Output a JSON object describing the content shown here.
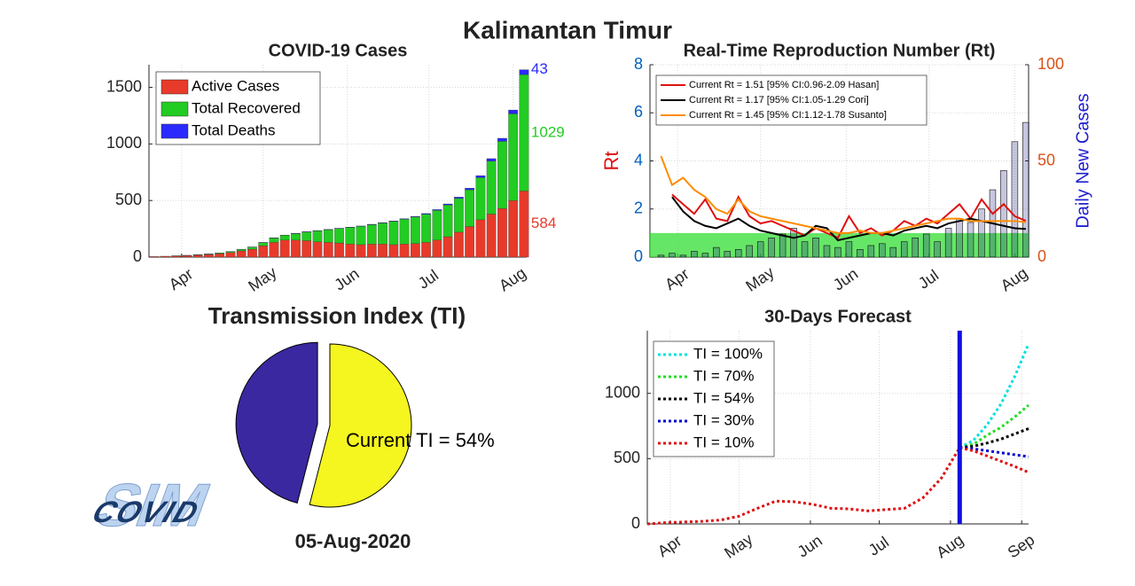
{
  "title": "Kalimantan Timur",
  "date": "05-Aug-2020",
  "logo": {
    "back": "SIM",
    "front": "COVID"
  },
  "chart_data": [
    {
      "type": "bar",
      "stacked": true,
      "title": "COVID-19 Cases",
      "grid": true,
      "legend": "upper left",
      "x": [
        82,
        86,
        90,
        94,
        98,
        102,
        106,
        110,
        114,
        118,
        122,
        126,
        130,
        134,
        138,
        142,
        146,
        150,
        154,
        158,
        162,
        166,
        170,
        174,
        178,
        182,
        186,
        190,
        194,
        198,
        202,
        206,
        210,
        214,
        218
      ],
      "xlim": [
        80,
        219
      ],
      "xticks": [
        {
          "value": 92,
          "label": "Apr"
        },
        {
          "value": 122,
          "label": "May"
        },
        {
          "value": 153,
          "label": "Jun"
        },
        {
          "value": 183,
          "label": "Jul"
        },
        {
          "value": 214,
          "label": "Aug"
        }
      ],
      "ylim": [
        0,
        1700
      ],
      "yticks": [
        0,
        500,
        1000,
        1500
      ],
      "series": [
        {
          "name": "Active Cases",
          "color": "#e83a2a",
          "values": [
            5,
            8,
            11,
            14,
            19,
            23,
            30,
            40,
            55,
            70,
            100,
            130,
            150,
            150,
            145,
            135,
            130,
            125,
            115,
            110,
            115,
            115,
            110,
            115,
            120,
            130,
            150,
            180,
            220,
            270,
            330,
            380,
            430,
            500,
            584
          ]
        },
        {
          "name": "Total Recovered",
          "color": "#22cc22",
          "values": [
            0,
            0,
            1,
            1,
            2,
            4,
            7,
            9,
            13,
            18,
            28,
            38,
            43,
            57,
            77,
            97,
            112,
            127,
            147,
            162,
            171,
            186,
            206,
            220,
            235,
            249,
            263,
            281,
            298,
            325,
            372,
            468,
            593,
            766,
            1029
          ]
        },
        {
          "name": "Total Deaths",
          "color": "#2a2aff",
          "values": [
            0,
            0,
            0,
            1,
            1,
            1,
            1,
            1,
            2,
            2,
            2,
            2,
            2,
            3,
            3,
            3,
            3,
            3,
            3,
            3,
            4,
            4,
            4,
            5,
            5,
            6,
            7,
            9,
            12,
            15,
            18,
            22,
            27,
            34,
            43
          ]
        }
      ]
    },
    {
      "type": "line",
      "title": "Real-Time Reproduction Number (Rt)",
      "ylabel": "Rt",
      "y2label": "Daily New Cases",
      "grid": true,
      "legend": "upper left",
      "x": [
        86,
        90,
        94,
        98,
        102,
        106,
        110,
        114,
        118,
        122,
        126,
        130,
        134,
        138,
        142,
        146,
        150,
        154,
        158,
        162,
        166,
        170,
        174,
        178,
        182,
        186,
        190,
        194,
        198,
        202,
        206,
        210,
        214,
        218
      ],
      "xlim": [
        82,
        219
      ],
      "xticks": [
        {
          "value": 92,
          "label": "Apr"
        },
        {
          "value": 122,
          "label": "May"
        },
        {
          "value": 153,
          "label": "Jun"
        },
        {
          "value": 183,
          "label": "Jul"
        },
        {
          "value": 214,
          "label": "Aug"
        }
      ],
      "ylim": [
        0,
        8
      ],
      "yticks": [
        0,
        2,
        4,
        6,
        8
      ],
      "y2lim": [
        0,
        100
      ],
      "y2ticks": [
        0,
        50,
        100
      ],
      "shaded_band": {
        "ylim": [
          0,
          1
        ],
        "color": "#33dd33"
      },
      "bars": {
        "axis": "y2",
        "color": "#1a1a80",
        "values": [
          1,
          2,
          1,
          3,
          2,
          5,
          3,
          4,
          6,
          8,
          10,
          12,
          15,
          8,
          10,
          6,
          5,
          8,
          4,
          6,
          7,
          5,
          8,
          10,
          12,
          8,
          15,
          20,
          18,
          25,
          35,
          45,
          60,
          70
        ]
      },
      "series": [
        {
          "name": "Current Rt = 1.51 [95% CI:0.96-2.09 Hasan]",
          "color": "#e01010",
          "values": [
            null,
            2.6,
            2.2,
            1.8,
            2.4,
            1.6,
            1.5,
            2.5,
            1.7,
            1.4,
            1.5,
            1.3,
            1.1,
            0.9,
            1.2,
            1.0,
            0.8,
            1.7,
            1.0,
            1.2,
            0.9,
            1.1,
            1.5,
            1.3,
            1.6,
            1.4,
            1.8,
            2.2,
            1.6,
            2.4,
            1.8,
            2.2,
            1.7,
            1.51
          ]
        },
        {
          "name": "Current Rt = 1.17 [95% CI:1.05-1.29 Cori]",
          "color": "#000000",
          "values": [
            null,
            2.5,
            1.9,
            1.5,
            1.3,
            1.2,
            1.4,
            1.6,
            1.3,
            1.1,
            1.0,
            0.9,
            0.8,
            0.9,
            1.3,
            1.2,
            0.7,
            0.8,
            0.9,
            1.0,
            1.0,
            0.9,
            1.1,
            1.2,
            1.3,
            1.2,
            1.4,
            1.5,
            1.6,
            1.5,
            1.4,
            1.3,
            1.2,
            1.17
          ]
        },
        {
          "name": "Current Rt = 1.45 [95% CI:1.12-1.78 Susanto]",
          "color": "#ff8c00",
          "values": [
            4.2,
            3.0,
            3.3,
            2.8,
            2.5,
            2.0,
            1.8,
            2.4,
            1.9,
            1.7,
            1.6,
            1.5,
            1.4,
            1.3,
            1.2,
            1.1,
            1.0,
            1.0,
            1.1,
            1.0,
            1.0,
            1.1,
            1.2,
            1.3,
            1.4,
            1.5,
            1.6,
            1.6,
            1.5,
            1.5,
            1.5,
            1.5,
            1.5,
            1.45
          ]
        }
      ]
    },
    {
      "type": "pie",
      "title": "Transmission Index (TI)",
      "values": [
        54,
        46
      ],
      "colors": [
        "#f5f520",
        "#3a28a0"
      ],
      "explode": [
        false,
        true
      ],
      "label": "Current TI = 54%"
    },
    {
      "type": "line",
      "title": "30-Days Forecast",
      "grid": true,
      "legend": "upper left",
      "xlim": [
        82,
        248
      ],
      "xticks": [
        {
          "value": 92,
          "label": "Apr"
        },
        {
          "value": 122,
          "label": "May"
        },
        {
          "value": 153,
          "label": "Jun"
        },
        {
          "value": 183,
          "label": "Jul"
        },
        {
          "value": 214,
          "label": "Aug"
        },
        {
          "value": 245,
          "label": "Sep"
        }
      ],
      "ylim": [
        0,
        1480
      ],
      "yticks": [
        0,
        500,
        1000
      ],
      "marker_x": 218,
      "marker_color": "#1010e0",
      "history": {
        "color": "#dd1111",
        "x": [
          82,
          90,
          98,
          106,
          114,
          122,
          130,
          138,
          146,
          154,
          162,
          170,
          178,
          186,
          194,
          202,
          210,
          218
        ],
        "values": [
          0,
          10,
          15,
          20,
          30,
          60,
          120,
          175,
          170,
          150,
          120,
          115,
          100,
          110,
          120,
          200,
          350,
          584
        ]
      },
      "x": [
        218,
        224,
        230,
        236,
        242,
        248
      ],
      "series": [
        {
          "name": "TI = 100%",
          "color": "#00e0e0",
          "values": [
            584,
            640,
            760,
            920,
            1130,
            1380
          ]
        },
        {
          "name": "TI = 70%",
          "color": "#22dd22",
          "values": [
            584,
            610,
            680,
            740,
            820,
            910
          ]
        },
        {
          "name": "TI = 54%",
          "color": "#000000",
          "values": [
            584,
            595,
            620,
            650,
            690,
            730
          ]
        },
        {
          "name": "TI = 30%",
          "color": "#0000cc",
          "values": [
            584,
            575,
            560,
            545,
            530,
            515
          ]
        },
        {
          "name": "TI = 10%",
          "color": "#dd1111",
          "values": [
            584,
            560,
            520,
            480,
            440,
            395
          ]
        }
      ]
    }
  ]
}
